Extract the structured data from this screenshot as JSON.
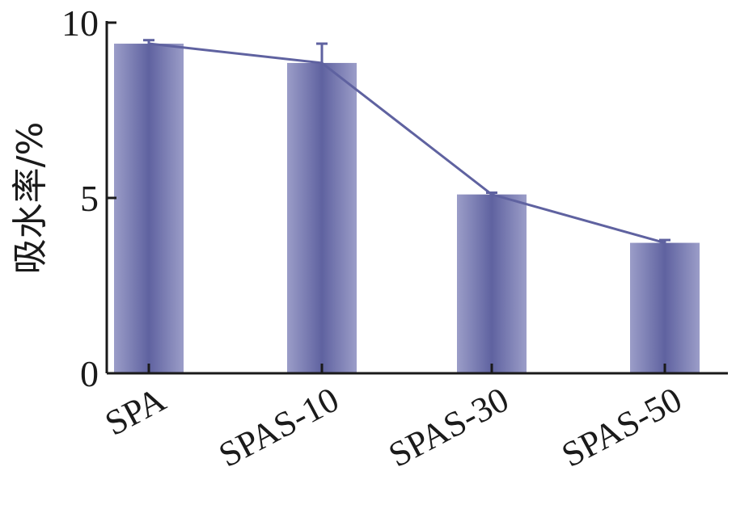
{
  "chart_data": {
    "type": "bar",
    "title": "",
    "xlabel": "",
    "ylabel": "吸水率/%",
    "categories": [
      "SPA",
      "SPAS-10",
      "SPAS-30",
      "SPAS-50"
    ],
    "values": [
      9.4,
      8.85,
      5.1,
      3.72
    ],
    "errors": [
      0.1,
      0.55,
      0.05,
      0.08
    ],
    "overlay_line": true,
    "ylim": [
      0,
      10
    ],
    "yticks": [
      "0",
      "5",
      "10"
    ],
    "grid": false,
    "legend": "none",
    "colors": {
      "bar_dark": "#5f62a0",
      "bar_light": "#9b9dc8",
      "line": "#5f62a0",
      "axis": "#1a1a1a"
    }
  }
}
